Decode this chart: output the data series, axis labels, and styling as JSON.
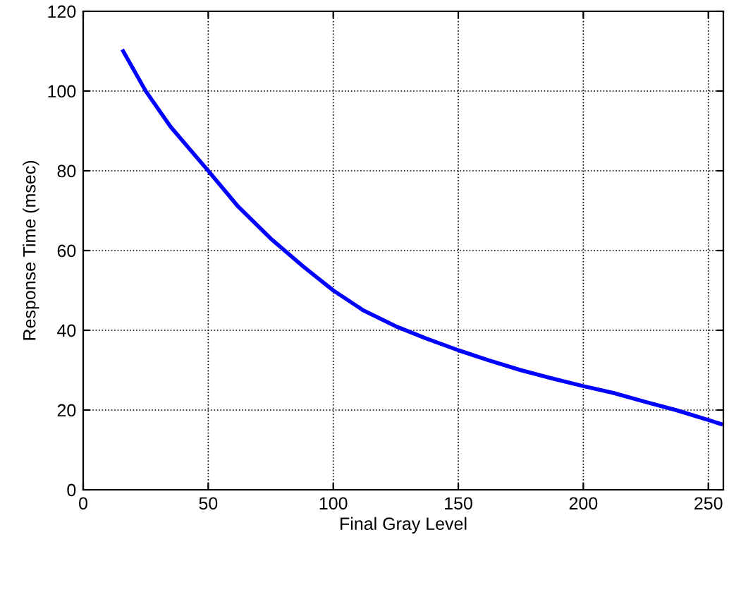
{
  "chart_data": {
    "type": "line",
    "xlabel": "Final Gray Level",
    "ylabel": "Response Time (msec)",
    "x": [
      16,
      25,
      35,
      50,
      62,
      75,
      88,
      100,
      112,
      125,
      137,
      150,
      162,
      175,
      187,
      200,
      212,
      225,
      237,
      250,
      255
    ],
    "series": [
      {
        "color": "#0000ff",
        "values": [
          110,
          100,
          91,
          80,
          71,
          63,
          56,
          50,
          45,
          41,
          38,
          35,
          32.5,
          30,
          28,
          26,
          24.3,
          22,
          20,
          17.5,
          16.5
        ]
      }
    ],
    "xlim": [
      0,
      256
    ],
    "xticks": [
      0,
      50,
      100,
      150,
      200,
      250
    ],
    "ylim": [
      0,
      120
    ],
    "yticks": [
      0,
      20,
      40,
      60,
      80,
      100,
      120
    ],
    "grid": true,
    "line_style": "solid",
    "marker": "none"
  }
}
